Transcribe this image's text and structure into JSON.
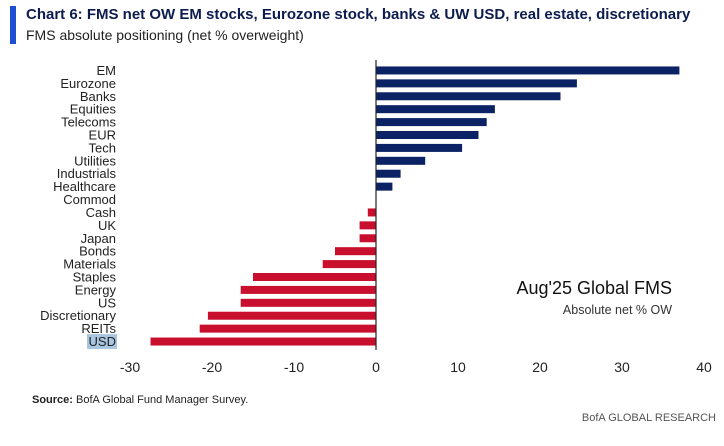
{
  "colors": {
    "accent": "#1f4fd1",
    "positive": "#0b2265",
    "negative": "#c8102e",
    "highlight": "#a9c6e0"
  },
  "source": {
    "label": "Source:",
    "text": "BofA Global Fund Manager Survey."
  },
  "brand": "BofA GLOBAL RESEARCH",
  "chart_data": {
    "type": "bar",
    "orientation": "horizontal",
    "title": "Chart 6: FMS net OW EM stocks, Eurozone stock, banks & UW USD, real estate, discretionary",
    "subtitle": "FMS absolute positioning (net % overweight)",
    "categories": [
      "EM",
      "Eurozone",
      "Banks",
      "Equities",
      "Telecoms",
      "EUR",
      "Tech",
      "Utilities",
      "Industrials",
      "Healthcare",
      "Commod",
      "Cash",
      "UK",
      "Japan",
      "Bonds",
      "Materials",
      "Staples",
      "Energy",
      "US",
      "Discretionary",
      "REITs",
      "USD"
    ],
    "values": [
      37,
      24.5,
      22.5,
      14.5,
      13.5,
      12.5,
      10.5,
      6,
      3,
      2,
      0,
      -1,
      -2,
      -2,
      -5,
      -6.5,
      -15,
      -16.5,
      -16.5,
      -20.5,
      -21.5,
      -27.5
    ],
    "highlighted_category": "USD",
    "xlim": [
      -30,
      40
    ],
    "xticks": [
      -30,
      -20,
      -10,
      0,
      10,
      20,
      30,
      40
    ],
    "annotation": {
      "main": "Aug'25 Global FMS",
      "sub": "Absolute net % OW"
    }
  }
}
